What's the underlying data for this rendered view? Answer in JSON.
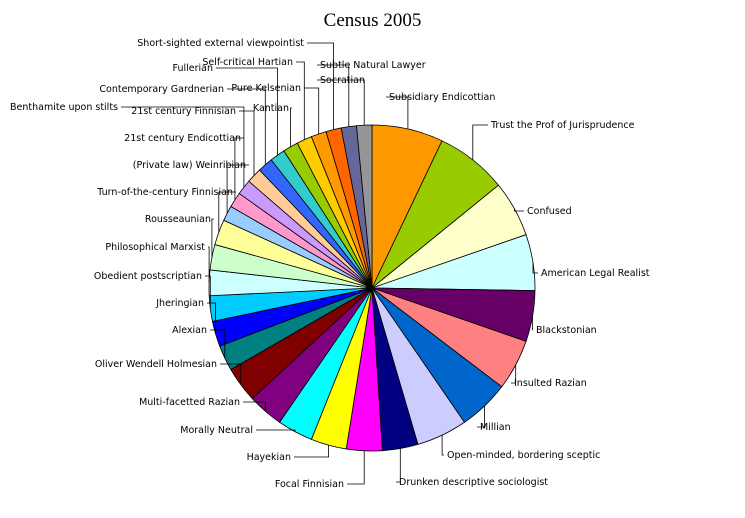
{
  "chart_data": {
    "type": "pie",
    "title": "Census 2005",
    "legend": "none",
    "slices": [
      {
        "label": "Subsidiary Endicottian",
        "value": 7.0,
        "color": "#ff9900"
      },
      {
        "label": "Trust the Prof of Jurisprudence",
        "value": 7.0,
        "color": "#99cc00"
      },
      {
        "label": "Confused",
        "value": 5.5,
        "color": "#ffffcc"
      },
      {
        "label": "American Legal Realist",
        "value": 5.5,
        "color": "#ccffff"
      },
      {
        "label": "Blackstonian",
        "value": 5.0,
        "color": "#660066"
      },
      {
        "label": "Insulted Razian",
        "value": 5.0,
        "color": "#ff8080"
      },
      {
        "label": "Millian",
        "value": 5.0,
        "color": "#0066cc"
      },
      {
        "label": "Open-minded, bordering sceptic",
        "value": 5.0,
        "color": "#ccccff"
      },
      {
        "label": "Drunken descriptive sociologist",
        "value": 3.5,
        "color": "#000080"
      },
      {
        "label": "Focal Finnisian",
        "value": 3.5,
        "color": "#ff00ff"
      },
      {
        "label": "Hayekian",
        "value": 3.5,
        "color": "#ffff00"
      },
      {
        "label": "Morally Neutral",
        "value": 3.5,
        "color": "#00ffff"
      },
      {
        "label": "Multi-facetted Razian",
        "value": 3.5,
        "color": "#800080"
      },
      {
        "label": "Oliver Wendell Holmesian",
        "value": 3.5,
        "color": "#800000"
      },
      {
        "label": "Alexian",
        "value": 2.5,
        "color": "#008080"
      },
      {
        "label": "Jheringian",
        "value": 2.5,
        "color": "#0000ff"
      },
      {
        "label": "Obedient postscriptian",
        "value": 2.5,
        "color": "#00ccff"
      },
      {
        "label": "Philosophical Marxist",
        "value": 2.5,
        "color": "#ccffff"
      },
      {
        "label": "Rousseaunian",
        "value": 2.5,
        "color": "#ccffcc"
      },
      {
        "label": "Turn-of-the-century Finnisian",
        "value": 2.5,
        "color": "#ffff99"
      },
      {
        "label": "(Private law) Weinribian",
        "value": 1.5,
        "color": "#99ccff"
      },
      {
        "label": "21st century Endicottian",
        "value": 1.5,
        "color": "#ff99cc"
      },
      {
        "label": "Benthamite upon stilts",
        "value": 1.5,
        "color": "#cc99ff"
      },
      {
        "label": "21st century Finnisian",
        "value": 1.5,
        "color": "#ffcc99"
      },
      {
        "label": "Contemporary Gardnerian",
        "value": 1.5,
        "color": "#3366ff"
      },
      {
        "label": "Fullerian",
        "value": 1.5,
        "color": "#33cccc"
      },
      {
        "label": "Kantian",
        "value": 1.5,
        "color": "#99cc00"
      },
      {
        "label": "Self-critical Hartian",
        "value": 1.5,
        "color": "#ffcc00"
      },
      {
        "label": "Pure Kelsenian",
        "value": 1.5,
        "color": "#ff9900"
      },
      {
        "label": "Short-sighted external viewpointist",
        "value": 1.5,
        "color": "#ff6600"
      },
      {
        "label": "Subtle Natural Lawyer",
        "value": 1.5,
        "color": "#666699"
      },
      {
        "label": "Socratian",
        "value": 1.5,
        "color": "#969696"
      }
    ]
  }
}
